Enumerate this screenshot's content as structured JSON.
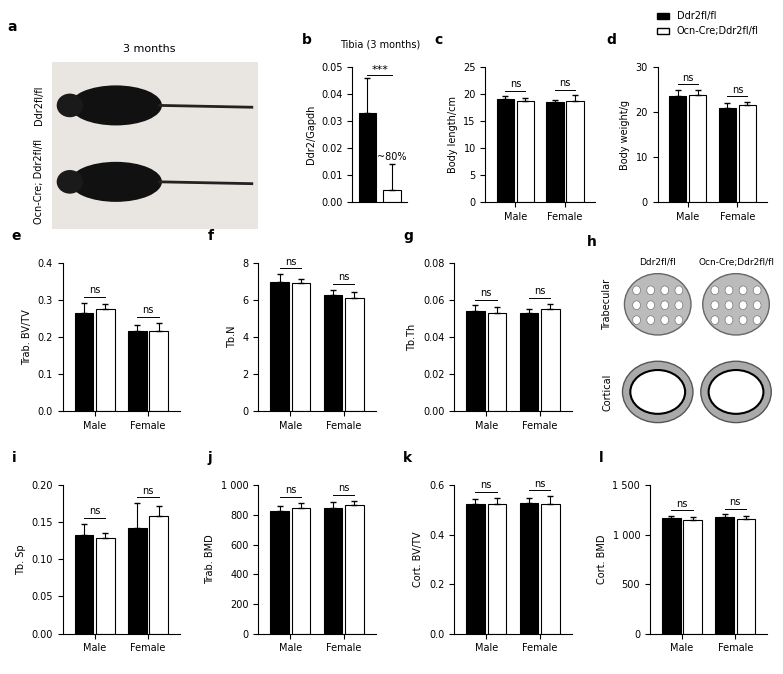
{
  "chart_data": [
    {
      "type": "bar",
      "panel": "b",
      "title": "Tibia (3 months)",
      "y_label": "Ddr2/Gapdh",
      "tick_labels": "y",
      "series": [
        {
          "name": "Ddr2fl/fl",
          "color": "#000000",
          "values": [
            0.033
          ],
          "errors": [
            0.013
          ]
        },
        {
          "name": "Ocn-Cre;Ddr2fl/fl",
          "color": "#ffffff",
          "values": [
            0.0045
          ],
          "errors": [
            0.0095
          ]
        }
      ],
      "ylim": [
        0,
        0.05
      ],
      "yticks": [
        {
          "value": 0,
          "label": "0.00"
        },
        {
          "value": 0.01,
          "label": "0.01"
        },
        {
          "value": 0.02,
          "label": "0.02"
        },
        {
          "value": 0.03,
          "label": "0.03"
        },
        {
          "value": 0.04,
          "label": "0.04"
        },
        {
          "value": 0.05,
          "label": "0.05"
        }
      ],
      "annotations": [
        "***",
        "~80%"
      ]
    },
    {
      "type": "bar",
      "panel": "c",
      "y_label": "Body length/cm",
      "categories": [
        "Male",
        "Female"
      ],
      "series": [
        {
          "name": "Ddr2fl/fl",
          "color": "#000000",
          "values": [
            19.2,
            18.5
          ],
          "errors": [
            0.5,
            0.4
          ]
        },
        {
          "name": "Ocn-Cre;Ddr2fl/fl",
          "color": "#ffffff",
          "values": [
            18.7,
            18.7
          ],
          "errors": [
            0.7,
            1.2
          ]
        }
      ],
      "ylim": [
        0,
        25
      ],
      "yticks": [
        0,
        5,
        10,
        15,
        20,
        25
      ],
      "annotations": [
        "ns",
        "ns"
      ]
    },
    {
      "type": "bar",
      "panel": "d",
      "y_label": "Body weight/g",
      "categories": [
        "Male",
        "Female"
      ],
      "legend": "upper right",
      "series": [
        {
          "name": "Ddr2fl/fl",
          "color": "#000000",
          "values": [
            23.7,
            21.0
          ],
          "errors": [
            1.3,
            1.0
          ]
        },
        {
          "name": "Ocn-Cre;Ddr2fl/fl",
          "color": "#ffffff",
          "values": [
            23.9,
            21.7
          ],
          "errors": [
            1.0,
            0.7
          ]
        }
      ],
      "ylim": [
        0,
        30
      ],
      "yticks": [
        0,
        10,
        20,
        30
      ],
      "annotations": [
        "ns",
        "ns"
      ]
    },
    {
      "type": "bar",
      "panel": "e",
      "y_label": "Trab. BV/TV",
      "categories": [
        "Male",
        "Female"
      ],
      "series": [
        {
          "name": "Ddr2fl/fl",
          "color": "#000000",
          "values": [
            0.265,
            0.215
          ],
          "errors": [
            0.028,
            0.018
          ]
        },
        {
          "name": "Ocn-Cre;Ddr2fl/fl",
          "color": "#ffffff",
          "values": [
            0.275,
            0.215
          ],
          "errors": [
            0.015,
            0.023
          ]
        }
      ],
      "ylim": [
        0,
        0.4
      ],
      "yticks": [
        {
          "value": 0,
          "label": "0.0"
        },
        0.1,
        0.2,
        0.3,
        0.4
      ],
      "annotations": [
        "ns",
        "ns"
      ]
    },
    {
      "type": "bar",
      "panel": "f",
      "y_label": "Tb.N",
      "categories": [
        "Male",
        "Female"
      ],
      "series": [
        {
          "name": "Ddr2fl/fl",
          "color": "#000000",
          "values": [
            6.95,
            6.25
          ],
          "errors": [
            0.45,
            0.3
          ]
        },
        {
          "name": "Ocn-Cre;Ddr2fl/fl",
          "color": "#ffffff",
          "values": [
            6.9,
            6.1
          ],
          "errors": [
            0.25,
            0.35
          ]
        }
      ],
      "ylim": [
        0,
        8
      ],
      "yticks": [
        0,
        2,
        4,
        6,
        8
      ],
      "annotations": [
        "ns",
        "ns"
      ]
    },
    {
      "type": "bar",
      "panel": "g",
      "y_label": "Tb.Th",
      "categories": [
        "Male",
        "Female"
      ],
      "series": [
        {
          "name": "Ddr2fl/fl",
          "color": "#000000",
          "values": [
            0.054,
            0.053
          ],
          "errors": [
            0.003,
            0.002
          ]
        },
        {
          "name": "Ocn-Cre;Ddr2fl/fl",
          "color": "#ffffff",
          "values": [
            0.053,
            0.055
          ],
          "errors": [
            0.003,
            0.003
          ]
        }
      ],
      "ylim": [
        0,
        0.08
      ],
      "yticks": [
        {
          "value": 0,
          "label": "0.00"
        },
        {
          "value": 0.02,
          "label": "0.02"
        },
        {
          "value": 0.04,
          "label": "0.04"
        },
        {
          "value": 0.06,
          "label": "0.06"
        },
        {
          "value": 0.08,
          "label": "0.08"
        }
      ],
      "annotations": [
        "ns",
        "ns"
      ]
    },
    {
      "type": "bar",
      "panel": "i",
      "y_label": "Tb. Sp",
      "categories": [
        "Male",
        "Female"
      ],
      "series": [
        {
          "name": "Ddr2fl/fl",
          "color": "#000000",
          "values": [
            0.133,
            0.143
          ],
          "errors": [
            0.015,
            0.033
          ]
        },
        {
          "name": "Ocn-Cre;Ddr2fl/fl",
          "color": "#ffffff",
          "values": [
            0.129,
            0.159
          ],
          "errors": [
            0.006,
            0.013
          ]
        }
      ],
      "ylim": [
        0,
        0.2
      ],
      "yticks": [
        {
          "value": 0,
          "label": "0.00"
        },
        {
          "value": 0.05,
          "label": "0.05"
        },
        {
          "value": 0.1,
          "label": "0.10"
        },
        {
          "value": 0.15,
          "label": "0.15"
        },
        {
          "value": 0.2,
          "label": "0.20"
        }
      ],
      "annotations": [
        "ns",
        "ns"
      ]
    },
    {
      "type": "bar",
      "panel": "j",
      "y_label": "Trab. BMD",
      "categories": [
        "Male",
        "Female"
      ],
      "series": [
        {
          "name": "Ddr2fl/fl",
          "color": "#000000",
          "values": [
            825,
            845
          ],
          "errors": [
            35,
            45
          ]
        },
        {
          "name": "Ocn-Cre;Ddr2fl/fl",
          "color": "#ffffff",
          "values": [
            848,
            865
          ],
          "errors": [
            35,
            30
          ]
        }
      ],
      "ylim": [
        0,
        1000
      ],
      "yticks": [
        0,
        200,
        400,
        600,
        800,
        {
          "value": 1000,
          "label": "1 000"
        }
      ],
      "annotations": [
        "ns",
        "ns"
      ]
    },
    {
      "type": "bar",
      "panel": "k",
      "y_label": "Cort. BV/TV",
      "categories": [
        "Male",
        "Female"
      ],
      "series": [
        {
          "name": "Ddr2fl/fl",
          "color": "#000000",
          "values": [
            0.525,
            0.53
          ],
          "errors": [
            0.02,
            0.02
          ]
        },
        {
          "name": "Ocn-Cre;Ddr2fl/fl",
          "color": "#ffffff",
          "values": [
            0.525,
            0.525
          ],
          "errors": [
            0.025,
            0.03
          ]
        }
      ],
      "ylim": [
        0,
        0.6
      ],
      "yticks": [
        {
          "value": 0,
          "label": "0.0"
        },
        0.2,
        0.4,
        0.6
      ],
      "annotations": [
        "ns",
        "ns"
      ]
    },
    {
      "type": "bar",
      "panel": "l",
      "y_label": "Cort. BMD",
      "categories": [
        "Male",
        "Female"
      ],
      "series": [
        {
          "name": "Ddr2fl/fl",
          "color": "#000000",
          "values": [
            1165,
            1180
          ],
          "errors": [
            20,
            25
          ]
        },
        {
          "name": "Ocn-Cre;Ddr2fl/fl",
          "color": "#ffffff",
          "values": [
            1150,
            1160
          ],
          "errors": [
            25,
            25
          ]
        }
      ],
      "ylim": [
        0,
        1500
      ],
      "yticks": [
        0,
        500,
        {
          "value": 1000,
          "label": "1 000"
        },
        {
          "value": 1500,
          "label": "1 500"
        }
      ],
      "annotations": [
        "ns",
        "ns"
      ]
    }
  ],
  "photo": {
    "panel": "a",
    "title": "3 months",
    "rows": [
      "Ddr2fl/fl",
      "Ocn-Cre; Ddr2fl/fl"
    ]
  },
  "images": {
    "panel": "h",
    "columns": [
      "Ddr2fl/fl",
      "Ocn-Cre;Ddr2fl/fl"
    ],
    "rows": [
      "Trabecular",
      "Cortical"
    ]
  }
}
